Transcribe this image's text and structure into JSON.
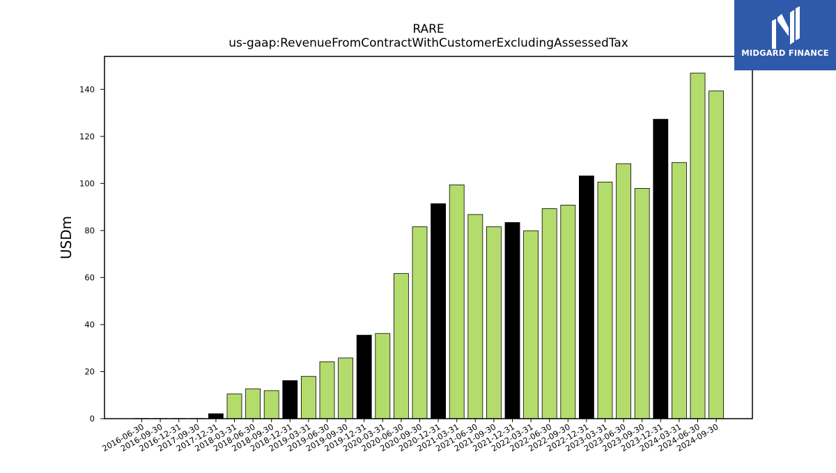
{
  "header": {
    "ticker": "RARE",
    "concept": "us-gaap:RevenueFromContractWithCustomerExcludingAssessedTax"
  },
  "logo": {
    "text": "MIDGARD FINANCE",
    "icon": "mh-monogram-icon",
    "background": "#2f5aaa"
  },
  "chart_data": {
    "type": "bar",
    "title": "RARE",
    "subtitle": "us-gaap:RevenueFromContractWithCustomerExcludingAssessedTax",
    "xlabel": "",
    "ylabel": "USDm",
    "ylim": [
      0,
      154
    ],
    "yticks": [
      0,
      20,
      40,
      60,
      80,
      100,
      120,
      140
    ],
    "grid": false,
    "legend": "none",
    "colors": {
      "quarter": "#b3dc6c",
      "annual": "#000000",
      "edge": "#000000"
    },
    "categories": [
      "2016-06-30",
      "2016-09-30",
      "2016-12-31",
      "2017-09-30",
      "2017-12-31",
      "2018-03-31",
      "2018-06-30",
      "2018-09-30",
      "2018-12-31",
      "2019-03-31",
      "2019-06-30",
      "2019-09-30",
      "2019-12-31",
      "2020-03-31",
      "2020-06-30",
      "2020-09-30",
      "2020-12-31",
      "2021-03-31",
      "2021-06-30",
      "2021-09-30",
      "2021-12-31",
      "2022-03-31",
      "2022-06-30",
      "2022-09-30",
      "2022-12-31",
      "2023-03-31",
      "2023-06-30",
      "2023-09-30",
      "2023-12-31",
      "2024-03-31",
      "2024-06-30",
      "2024-09-30"
    ],
    "values": [
      0.1,
      0.1,
      0.1,
      0.1,
      2.1,
      10.5,
      12.7,
      11.9,
      16.2,
      18.0,
      24.2,
      25.8,
      35.5,
      36.2,
      61.7,
      81.6,
      91.4,
      99.4,
      86.8,
      81.6,
      83.4,
      79.9,
      89.3,
      90.8,
      103.2,
      100.6,
      108.4,
      97.9,
      127.3,
      108.9,
      146.9,
      139.3
    ],
    "series_type": [
      "q",
      "q",
      "q",
      "q",
      "a",
      "q",
      "q",
      "q",
      "a",
      "q",
      "q",
      "q",
      "a",
      "q",
      "q",
      "q",
      "a",
      "q",
      "q",
      "q",
      "a",
      "q",
      "q",
      "q",
      "a",
      "q",
      "q",
      "q",
      "a",
      "q",
      "q",
      "q"
    ]
  }
}
